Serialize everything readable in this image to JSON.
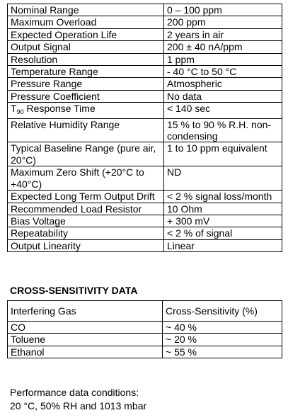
{
  "table": {
    "rows": [
      [
        "Nominal Range",
        "0 – 100 ppm"
      ],
      [
        "Maximum Overload",
        "200 ppm"
      ],
      [
        "Expected Operation Life",
        "2 years in air"
      ],
      [
        "Output Signal",
        "200  ± 40 nA/ppm"
      ],
      [
        "Resolution",
        "1 ppm"
      ],
      [
        "Temperature Range",
        "- 40 °C to 50 °C"
      ],
      [
        "Pressure Range",
        "Atmospheric"
      ],
      [
        "Pressure Coefficient",
        "No data"
      ],
      [
        {
          "text": "T",
          "sub": "90",
          "rest": " Response Time"
        },
        "< 140 sec"
      ],
      [
        "Relative Humidity Range",
        "15 % to 90 % R.H. non-condensing"
      ],
      [
        "Typical Baseline Range (pure air, 20°C)",
        "1 to 10 ppm equivalent"
      ],
      [
        "Maximum Zero Shift (+20°C to +40°C)",
        "ND"
      ],
      [
        "Expected Long Term Output Drift",
        "< 2 % signal loss/month"
      ],
      [
        "Recommended Load Resistor",
        "10 Ohm"
      ],
      [
        "Bias Voltage",
        "+ 300 mV"
      ],
      [
        "Repeatability",
        "< 2 % of signal"
      ],
      [
        "Output Linearity",
        "Linear"
      ]
    ]
  },
  "cross_sensitivity": {
    "title": "CROSS-SENSITIVITY DATA",
    "header": [
      "Interfering Gas",
      "Cross-Sensitivity (%)"
    ],
    "rows": [
      [
        "CO",
        "~ 40 %"
      ],
      [
        "Toluene",
        "~ 20 %"
      ],
      [
        "Ethanol",
        "~ 55 %"
      ]
    ]
  },
  "footer": {
    "lines": [
      "Performance data conditions:",
      "20 °C, 50% RH and 1013 mbar"
    ]
  }
}
